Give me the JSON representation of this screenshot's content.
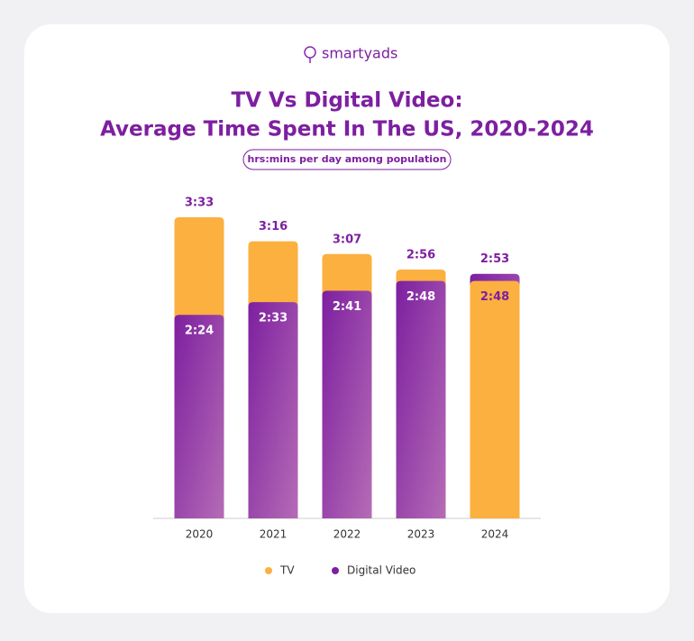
{
  "brand": "smartyads",
  "chart_data": {
    "type": "overlap-bar",
    "title": [
      "TV Vs Digital Video:",
      "Average Time Spent In The US, 2020-2024"
    ],
    "subtitle": "hrs:mins per day among population",
    "categories": [
      "2020",
      "2021",
      "2022",
      "2023",
      "2024"
    ],
    "series": [
      {
        "name": "TV",
        "color": "#fbb040",
        "values": [
          213,
          196,
          187,
          176,
          168
        ],
        "value_labels": [
          "3:33",
          "3:16",
          "3:07",
          "2:56",
          "2:48"
        ]
      },
      {
        "name": "Digital Video",
        "color": "#7d1fa0",
        "values": [
          144,
          153,
          161,
          168,
          173
        ],
        "value_labels": [
          "2:24",
          "2:33",
          "2:41",
          "2:48",
          "2:53"
        ]
      }
    ]
  }
}
